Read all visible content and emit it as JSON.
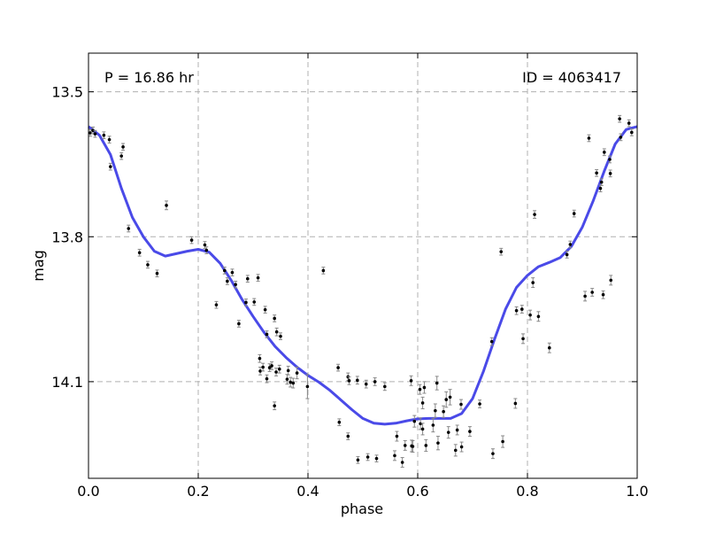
{
  "chart_data": {
    "type": "scatter",
    "title": "",
    "xlabel": "phase",
    "ylabel": "mag",
    "xlim": [
      0.0,
      1.0
    ],
    "ylim": [
      14.3,
      13.42
    ],
    "y_inverted": true,
    "grid": true,
    "xticks": [
      0.0,
      0.2,
      0.4,
      0.6,
      0.8,
      1.0
    ],
    "xtick_labels": [
      "0.0",
      "0.2",
      "0.4",
      "0.6",
      "0.8",
      "1.0"
    ],
    "yticks": [
      13.5,
      13.8,
      14.1
    ],
    "ytick_labels": [
      "13.5",
      "13.8",
      "14.1"
    ],
    "annotations": {
      "period": "P = 16.86 hr",
      "id": "ID = 4063417"
    },
    "colors": {
      "fit": "#4a4ae8",
      "points": "#000000",
      "errorbars": "#888888",
      "grid": "#b0b0b0"
    },
    "series": [
      {
        "type": "scatter",
        "points": [
          {
            "x": 0.003,
            "y": 13.585,
            "e": 0.007
          },
          {
            "x": 0.008,
            "y": 13.58,
            "e": 0.007
          },
          {
            "x": 0.012,
            "y": 13.587,
            "e": 0.007
          },
          {
            "x": 0.028,
            "y": 13.59,
            "e": 0.007
          },
          {
            "x": 0.038,
            "y": 13.599,
            "e": 0.007
          },
          {
            "x": 0.04,
            "y": 13.655,
            "e": 0.007
          },
          {
            "x": 0.06,
            "y": 13.633,
            "e": 0.007
          },
          {
            "x": 0.063,
            "y": 13.614,
            "e": 0.007
          },
          {
            "x": 0.073,
            "y": 13.783,
            "e": 0.007
          },
          {
            "x": 0.093,
            "y": 13.833,
            "e": 0.007
          },
          {
            "x": 0.108,
            "y": 13.858,
            "e": 0.007
          },
          {
            "x": 0.125,
            "y": 13.876,
            "e": 0.007
          },
          {
            "x": 0.142,
            "y": 13.735,
            "e": 0.009
          },
          {
            "x": 0.188,
            "y": 13.807,
            "e": 0.007
          },
          {
            "x": 0.212,
            "y": 13.817,
            "e": 0.007
          },
          {
            "x": 0.215,
            "y": 13.828,
            "e": 0.007
          },
          {
            "x": 0.233,
            "y": 13.941,
            "e": 0.007
          },
          {
            "x": 0.248,
            "y": 13.87,
            "e": 0.007
          },
          {
            "x": 0.253,
            "y": 13.892,
            "e": 0.007
          },
          {
            "x": 0.262,
            "y": 13.874,
            "e": 0.007
          },
          {
            "x": 0.268,
            "y": 13.899,
            "e": 0.007
          },
          {
            "x": 0.274,
            "y": 13.98,
            "e": 0.007
          },
          {
            "x": 0.287,
            "y": 13.936,
            "e": 0.007
          },
          {
            "x": 0.29,
            "y": 13.887,
            "e": 0.007
          },
          {
            "x": 0.302,
            "y": 13.935,
            "e": 0.007
          },
          {
            "x": 0.309,
            "y": 13.885,
            "e": 0.007
          },
          {
            "x": 0.312,
            "y": 14.052,
            "e": 0.008
          },
          {
            "x": 0.313,
            "y": 14.078,
            "e": 0.008
          },
          {
            "x": 0.318,
            "y": 14.07,
            "e": 0.008
          },
          {
            "x": 0.322,
            "y": 13.951,
            "e": 0.007
          },
          {
            "x": 0.325,
            "y": 14.002,
            "e": 0.007
          },
          {
            "x": 0.325,
            "y": 14.094,
            "e": 0.008
          },
          {
            "x": 0.33,
            "y": 14.071,
            "e": 0.008
          },
          {
            "x": 0.334,
            "y": 14.067,
            "e": 0.008
          },
          {
            "x": 0.339,
            "y": 13.969,
            "e": 0.007
          },
          {
            "x": 0.339,
            "y": 14.15,
            "e": 0.008
          },
          {
            "x": 0.342,
            "y": 14.08,
            "e": 0.008
          },
          {
            "x": 0.343,
            "y": 13.997,
            "e": 0.008
          },
          {
            "x": 0.348,
            "y": 14.074,
            "e": 0.008
          },
          {
            "x": 0.35,
            "y": 14.006,
            "e": 0.007
          },
          {
            "x": 0.362,
            "y": 14.095,
            "e": 0.01
          },
          {
            "x": 0.364,
            "y": 14.077,
            "e": 0.009
          },
          {
            "x": 0.368,
            "y": 14.101,
            "e": 0.01
          },
          {
            "x": 0.373,
            "y": 14.103,
            "e": 0.01
          },
          {
            "x": 0.38,
            "y": 14.082,
            "e": 0.012
          },
          {
            "x": 0.399,
            "y": 14.11,
            "e": 0.025
          },
          {
            "x": 0.428,
            "y": 13.87,
            "e": 0.007
          },
          {
            "x": 0.455,
            "y": 14.071,
            "e": 0.007
          },
          {
            "x": 0.457,
            "y": 14.184,
            "e": 0.007
          },
          {
            "x": 0.473,
            "y": 14.09,
            "e": 0.008
          },
          {
            "x": 0.473,
            "y": 14.213,
            "e": 0.007
          },
          {
            "x": 0.475,
            "y": 14.098,
            "e": 0.008
          },
          {
            "x": 0.49,
            "y": 14.097,
            "e": 0.008
          },
          {
            "x": 0.491,
            "y": 14.262,
            "e": 0.007
          },
          {
            "x": 0.506,
            "y": 14.105,
            "e": 0.008
          },
          {
            "x": 0.509,
            "y": 14.256,
            "e": 0.007
          },
          {
            "x": 0.522,
            "y": 14.1,
            "e": 0.008
          },
          {
            "x": 0.525,
            "y": 14.259,
            "e": 0.007
          },
          {
            "x": 0.54,
            "y": 14.11,
            "e": 0.008
          },
          {
            "x": 0.558,
            "y": 14.253,
            "e": 0.01
          },
          {
            "x": 0.562,
            "y": 14.213,
            "e": 0.01
          },
          {
            "x": 0.572,
            "y": 14.267,
            "e": 0.01
          },
          {
            "x": 0.577,
            "y": 14.232,
            "e": 0.01
          },
          {
            "x": 0.588,
            "y": 14.098,
            "e": 0.01
          },
          {
            "x": 0.589,
            "y": 14.233,
            "e": 0.012
          },
          {
            "x": 0.591,
            "y": 14.234,
            "e": 0.012
          },
          {
            "x": 0.594,
            "y": 14.182,
            "e": 0.012
          },
          {
            "x": 0.604,
            "y": 14.116,
            "e": 0.01
          },
          {
            "x": 0.605,
            "y": 14.187,
            "e": 0.012
          },
          {
            "x": 0.609,
            "y": 14.144,
            "e": 0.012
          },
          {
            "x": 0.609,
            "y": 14.198,
            "e": 0.012
          },
          {
            "x": 0.612,
            "y": 14.112,
            "e": 0.012
          },
          {
            "x": 0.615,
            "y": 14.232,
            "e": 0.012
          },
          {
            "x": 0.628,
            "y": 14.19,
            "e": 0.014
          },
          {
            "x": 0.632,
            "y": 14.16,
            "e": 0.014
          },
          {
            "x": 0.635,
            "y": 14.103,
            "e": 0.014
          },
          {
            "x": 0.637,
            "y": 14.227,
            "e": 0.014
          },
          {
            "x": 0.647,
            "y": 14.162,
            "e": 0.012
          },
          {
            "x": 0.652,
            "y": 14.137,
            "e": 0.016
          },
          {
            "x": 0.656,
            "y": 14.205,
            "e": 0.012
          },
          {
            "x": 0.659,
            "y": 14.132,
            "e": 0.016
          },
          {
            "x": 0.669,
            "y": 14.242,
            "e": 0.012
          },
          {
            "x": 0.672,
            "y": 14.2,
            "e": 0.01
          },
          {
            "x": 0.679,
            "y": 14.147,
            "e": 0.01
          },
          {
            "x": 0.68,
            "y": 14.235,
            "e": 0.01
          },
          {
            "x": 0.695,
            "y": 14.203,
            "e": 0.01
          },
          {
            "x": 0.713,
            "y": 14.146,
            "e": 0.008
          },
          {
            "x": 0.735,
            "y": 14.017,
            "e": 0.008
          },
          {
            "x": 0.737,
            "y": 14.249,
            "e": 0.01
          },
          {
            "x": 0.752,
            "y": 13.831,
            "e": 0.007
          },
          {
            "x": 0.755,
            "y": 14.224,
            "e": 0.012
          },
          {
            "x": 0.778,
            "y": 14.145,
            "e": 0.01
          },
          {
            "x": 0.78,
            "y": 13.953,
            "e": 0.008
          },
          {
            "x": 0.79,
            "y": 13.95,
            "e": 0.008
          },
          {
            "x": 0.792,
            "y": 14.011,
            "e": 0.01
          },
          {
            "x": 0.805,
            "y": 13.962,
            "e": 0.01
          },
          {
            "x": 0.81,
            "y": 13.895,
            "e": 0.01
          },
          {
            "x": 0.813,
            "y": 13.754,
            "e": 0.008
          },
          {
            "x": 0.82,
            "y": 13.965,
            "e": 0.01
          },
          {
            "x": 0.84,
            "y": 14.03,
            "e": 0.01
          },
          {
            "x": 0.872,
            "y": 13.837,
            "e": 0.007
          },
          {
            "x": 0.878,
            "y": 13.816,
            "e": 0.007
          },
          {
            "x": 0.885,
            "y": 13.752,
            "e": 0.007
          },
          {
            "x": 0.905,
            "y": 13.923,
            "e": 0.01
          },
          {
            "x": 0.912,
            "y": 13.596,
            "e": 0.007
          },
          {
            "x": 0.918,
            "y": 13.915,
            "e": 0.008
          },
          {
            "x": 0.926,
            "y": 13.668,
            "e": 0.007
          },
          {
            "x": 0.933,
            "y": 13.7,
            "e": 0.007
          },
          {
            "x": 0.935,
            "y": 13.687,
            "e": 0.007
          },
          {
            "x": 0.938,
            "y": 13.92,
            "e": 0.008
          },
          {
            "x": 0.94,
            "y": 13.625,
            "e": 0.007
          },
          {
            "x": 0.95,
            "y": 13.64,
            "e": 0.007
          },
          {
            "x": 0.951,
            "y": 13.669,
            "e": 0.007
          },
          {
            "x": 0.952,
            "y": 13.89,
            "e": 0.01
          },
          {
            "x": 0.968,
            "y": 13.556,
            "e": 0.007
          },
          {
            "x": 0.97,
            "y": 13.594,
            "e": 0.007
          },
          {
            "x": 0.985,
            "y": 13.565,
            "e": 0.007
          },
          {
            "x": 0.99,
            "y": 13.584,
            "e": 0.007
          }
        ]
      },
      {
        "type": "line",
        "points": [
          [
            0.0,
            13.572
          ],
          [
            0.02,
            13.59
          ],
          [
            0.04,
            13.63
          ],
          [
            0.06,
            13.7
          ],
          [
            0.08,
            13.76
          ],
          [
            0.1,
            13.8
          ],
          [
            0.12,
            13.83
          ],
          [
            0.14,
            13.84
          ],
          [
            0.16,
            13.835
          ],
          [
            0.18,
            13.83
          ],
          [
            0.2,
            13.826
          ],
          [
            0.22,
            13.832
          ],
          [
            0.24,
            13.855
          ],
          [
            0.26,
            13.89
          ],
          [
            0.28,
            13.93
          ],
          [
            0.3,
            13.965
          ],
          [
            0.32,
            13.998
          ],
          [
            0.34,
            14.027
          ],
          [
            0.36,
            14.05
          ],
          [
            0.38,
            14.07
          ],
          [
            0.4,
            14.087
          ],
          [
            0.42,
            14.101
          ],
          [
            0.44,
            14.118
          ],
          [
            0.46,
            14.138
          ],
          [
            0.48,
            14.158
          ],
          [
            0.5,
            14.176
          ],
          [
            0.52,
            14.186
          ],
          [
            0.54,
            14.188
          ],
          [
            0.56,
            14.186
          ],
          [
            0.58,
            14.181
          ],
          [
            0.6,
            14.177
          ],
          [
            0.62,
            14.176
          ],
          [
            0.64,
            14.176
          ],
          [
            0.66,
            14.176
          ],
          [
            0.68,
            14.166
          ],
          [
            0.7,
            14.135
          ],
          [
            0.72,
            14.078
          ],
          [
            0.74,
            14.012
          ],
          [
            0.76,
            13.95
          ],
          [
            0.78,
            13.905
          ],
          [
            0.8,
            13.88
          ],
          [
            0.82,
            13.862
          ],
          [
            0.84,
            13.853
          ],
          [
            0.86,
            13.843
          ],
          [
            0.88,
            13.82
          ],
          [
            0.9,
            13.78
          ],
          [
            0.92,
            13.725
          ],
          [
            0.94,
            13.664
          ],
          [
            0.96,
            13.608
          ],
          [
            0.98,
            13.578
          ],
          [
            1.0,
            13.572
          ]
        ]
      }
    ]
  }
}
